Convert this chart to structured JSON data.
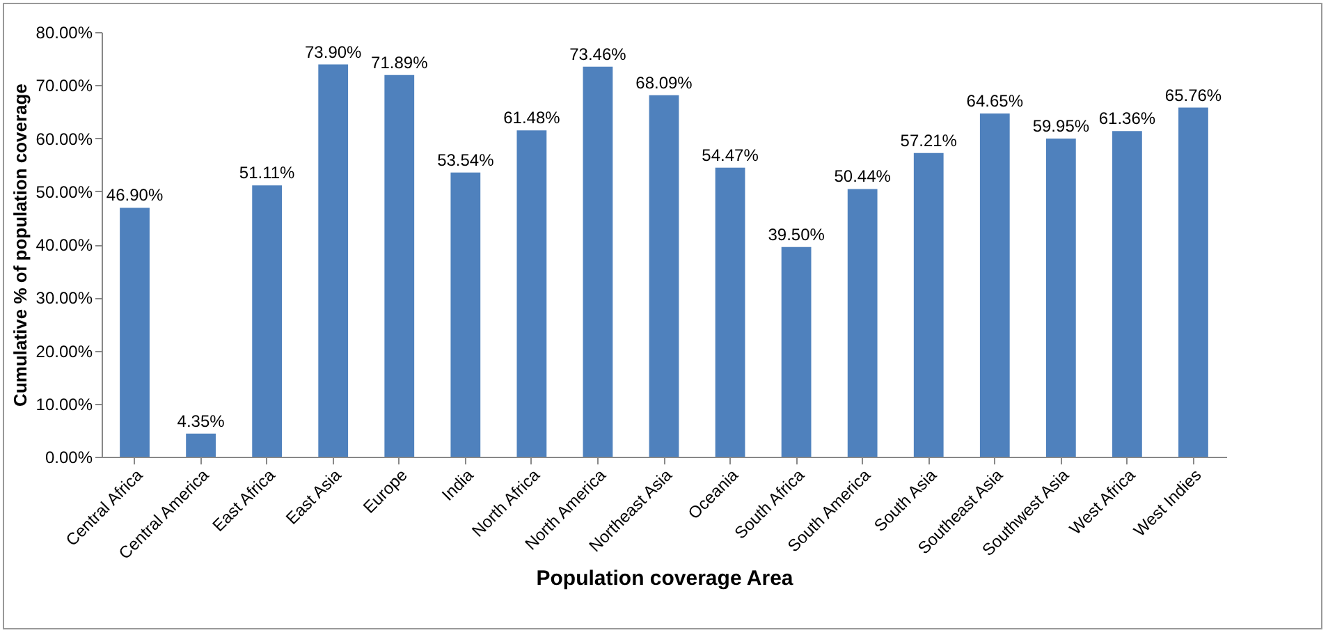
{
  "chart_data": {
    "type": "bar",
    "xlabel": "Population coverage Area",
    "ylabel": "Cumulative % of population coverage",
    "categories": [
      "Central Africa",
      "Central America",
      "East Africa",
      "East Asia",
      "Europe",
      "India",
      "North Africa",
      "North America",
      "Northeast Asia",
      "Oceania",
      "South Africa",
      "South America",
      "South Asia",
      "Southeast Asia",
      "Southwest Asia",
      "West Africa",
      "West Indies"
    ],
    "values": [
      46.9,
      4.35,
      51.11,
      73.9,
      71.89,
      53.54,
      61.48,
      73.46,
      68.09,
      54.47,
      39.5,
      50.44,
      57.21,
      64.65,
      59.95,
      61.36,
      65.76
    ],
    "value_labels": [
      "46.90%",
      "4.35%",
      "51.11%",
      "73.90%",
      "71.89%",
      "53.54%",
      "61.48%",
      "73.46%",
      "68.09%",
      "54.47%",
      "39.50%",
      "50.44%",
      "57.21%",
      "64.65%",
      "59.95%",
      "61.36%",
      "65.76%"
    ],
    "color": "#4f81bd",
    "ylim": [
      0,
      80
    ],
    "yticks": [
      {
        "value": 0,
        "label": "0.00%"
      },
      {
        "value": 10,
        "label": "10.00%"
      },
      {
        "value": 20,
        "label": "20.00%"
      },
      {
        "value": 30,
        "label": "30.00%"
      },
      {
        "value": 40,
        "label": "40.00%"
      },
      {
        "value": 50,
        "label": "50.00%"
      },
      {
        "value": 60,
        "label": "60.00%"
      },
      {
        "value": 70,
        "label": "70.00%"
      },
      {
        "value": 80,
        "label": "80.00%"
      }
    ],
    "grid": false
  }
}
